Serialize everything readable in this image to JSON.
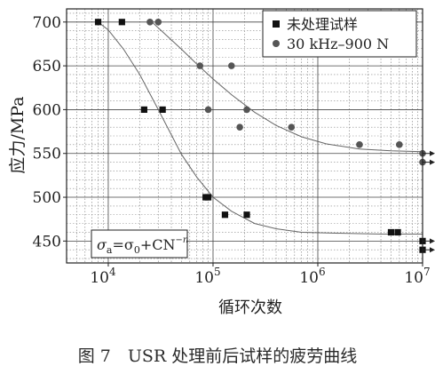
{
  "caption": "图 7　USR 处理前后试样的疲劳曲线",
  "chart_data": {
    "type": "scatter",
    "title": "",
    "xlabel": "循环次数",
    "ylabel": "应力/MPa",
    "xscale": "log",
    "xlim": [
      4000,
      10000000
    ],
    "ylim": [
      425,
      715
    ],
    "x_ticks": [
      {
        "value": 10000,
        "base": "10",
        "exp": "4"
      },
      {
        "value": 100000,
        "base": "10",
        "exp": "5"
      },
      {
        "value": 1000000,
        "base": "10",
        "exp": "6"
      },
      {
        "value": 10000000,
        "base": "10",
        "exp": "7"
      }
    ],
    "y_ticks": [
      {
        "value": 450,
        "label": "450"
      },
      {
        "value": 500,
        "label": "500"
      },
      {
        "value": 550,
        "label": "550"
      },
      {
        "value": 600,
        "label": "600"
      },
      {
        "value": 650,
        "label": "650"
      },
      {
        "value": 700,
        "label": "700"
      }
    ],
    "grid": true,
    "legend_position": "top-right",
    "annotation": {
      "text_parts": [
        "σ",
        "a",
        "=σ",
        "0",
        "+CN",
        "−n"
      ]
    },
    "runout_arrows": [
      {
        "y": 550
      },
      {
        "y": 540
      },
      {
        "y": 450
      },
      {
        "y": 440
      }
    ],
    "series": [
      {
        "name": "未处理试样",
        "marker": "square",
        "color": "#111111",
        "points": [
          [
            8000,
            700
          ],
          [
            13500,
            700
          ],
          [
            22000,
            600
          ],
          [
            33000,
            600
          ],
          [
            85000,
            500
          ],
          [
            90000,
            500
          ],
          [
            130000,
            480
          ],
          [
            210000,
            480
          ],
          [
            5000000,
            460
          ],
          [
            5800000,
            460
          ],
          [
            10000000,
            450
          ],
          [
            10000000,
            440
          ]
        ],
        "fit": [
          [
            8000,
            700
          ],
          [
            10000,
            691
          ],
          [
            14000,
            669
          ],
          [
            20000,
            640
          ],
          [
            30000,
            600
          ],
          [
            50000,
            549
          ],
          [
            70000,
            523
          ],
          [
            100000,
            500
          ],
          [
            150000,
            484
          ],
          [
            250000,
            470
          ],
          [
            400000,
            464
          ],
          [
            700000,
            460
          ],
          [
            1500000,
            459
          ],
          [
            4000000,
            458
          ],
          [
            10000000,
            458
          ]
        ]
      },
      {
        "name": "30 kHz–900 N",
        "marker": "circle",
        "color": "#555555",
        "points": [
          [
            25000,
            700
          ],
          [
            30000,
            700
          ],
          [
            75000,
            650
          ],
          [
            150000,
            650
          ],
          [
            90000,
            600
          ],
          [
            210000,
            600
          ],
          [
            180000,
            580
          ],
          [
            560000,
            580
          ],
          [
            2500000,
            560
          ],
          [
            6000000,
            560
          ],
          [
            10000000,
            550
          ],
          [
            10000000,
            540
          ]
        ],
        "fit": [
          [
            25000,
            702
          ],
          [
            35000,
            686
          ],
          [
            50000,
            669
          ],
          [
            70000,
            652
          ],
          [
            100000,
            635
          ],
          [
            150000,
            617
          ],
          [
            250000,
            597
          ],
          [
            400000,
            582
          ],
          [
            700000,
            569
          ],
          [
            1200000,
            561
          ],
          [
            2500000,
            555
          ],
          [
            5000000,
            553
          ],
          [
            10000000,
            552
          ]
        ]
      }
    ]
  }
}
